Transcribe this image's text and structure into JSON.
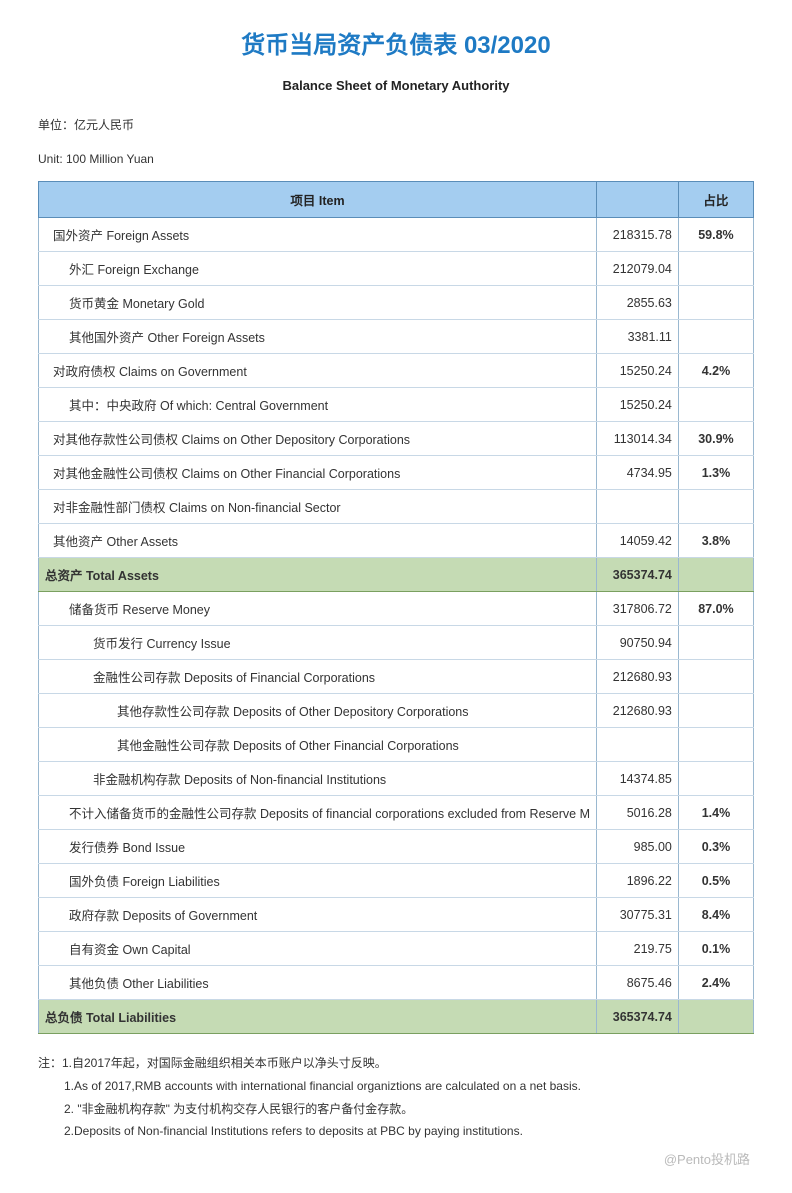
{
  "title": "货币当局资产负债表 03/2020",
  "subtitle": "Balance Sheet of  Monetary Authority",
  "unit_cn": "单位：亿元人民币",
  "unit_en": "Unit: 100 Million Yuan",
  "header": {
    "item": "项目  Item",
    "value": "",
    "pct": "占比"
  },
  "rows": [
    {
      "item": "国外资产   Foreign Assets",
      "val": "218315.78",
      "pct": "59.8%",
      "indent": 0,
      "major": true
    },
    {
      "item": "外汇  Foreign Exchange",
      "val": "212079.04",
      "pct": "",
      "indent": 1
    },
    {
      "item": "货币黄金  Monetary Gold",
      "val": "2855.63",
      "pct": "",
      "indent": 1
    },
    {
      "item": "其他国外资产  Other Foreign Assets",
      "val": "3381.11",
      "pct": "",
      "indent": 1
    },
    {
      "item": "对政府债权  Claims on Government",
      "val": "15250.24",
      "pct": "4.2%",
      "indent": 0,
      "major": true
    },
    {
      "item": "其中：中央政府  Of which: Central Government",
      "val": "15250.24",
      "pct": "",
      "indent": 1
    },
    {
      "item": "对其他存款性公司债权  Claims on Other Depository Corporations",
      "val": "113014.34",
      "pct": "30.9%",
      "indent": 0,
      "major": true
    },
    {
      "item": "对其他金融性公司债权  Claims on Other Financial Corporations",
      "val": "4734.95",
      "pct": "1.3%",
      "indent": 0,
      "major": true
    },
    {
      "item": "对非金融性部门债权  Claims on Non-financial Sector",
      "val": "",
      "pct": "",
      "indent": 0
    },
    {
      "item": "其他资产  Other Assets",
      "val": "14059.42",
      "pct": "3.8%",
      "indent": 0,
      "major": true
    },
    {
      "item": "总资产  Total Assets",
      "val": "365374.74",
      "pct": "",
      "indent": 0,
      "total": true
    },
    {
      "item": "储备货币  Reserve Money",
      "val": "317806.72",
      "pct": "87.0%",
      "indent": 1,
      "major": true
    },
    {
      "item": "货币发行  Currency Issue",
      "val": "90750.94",
      "pct": "",
      "indent": 2
    },
    {
      "item": "金融性公司存款  Deposits of  Financial Corporations",
      "val": "212680.93",
      "pct": "",
      "indent": 2
    },
    {
      "item": "其他存款性公司存款  Deposits of  Other Depository Corporations",
      "val": "212680.93",
      "pct": "",
      "indent": 3
    },
    {
      "item": "其他金融性公司存款  Deposits of  Other Financial Corporations",
      "val": "",
      "pct": "",
      "indent": 3
    },
    {
      "item": "非金融机构存款 Deposits of  Non-financial Institutions",
      "val": "14374.85",
      "pct": "",
      "indent": 2
    },
    {
      "item": "不计入储备货币的金融性公司存款  Deposits of financial corporations excluded from Reserve M",
      "val": "5016.28",
      "pct": "1.4%",
      "indent": 1,
      "major": true
    },
    {
      "item": "发行债券  Bond Issue",
      "val": "985.00",
      "pct": "0.3%",
      "indent": 1,
      "major": true
    },
    {
      "item": "国外负债  Foreign Liabilities",
      "val": "1896.22",
      "pct": "0.5%",
      "indent": 1,
      "major": true
    },
    {
      "item": "政府存款  Deposits of Government",
      "val": "30775.31",
      "pct": "8.4%",
      "indent": 1,
      "major": true
    },
    {
      "item": "自有资金  Own Capital",
      "val": "219.75",
      "pct": "0.1%",
      "indent": 1,
      "major": true
    },
    {
      "item": "其他负债  Other Liabilities",
      "val": "8675.46",
      "pct": "2.4%",
      "indent": 1,
      "major": true
    },
    {
      "item": "总负债  Total  Liabilities",
      "val": "365374.74",
      "pct": "",
      "indent": 0,
      "total": true
    }
  ],
  "notes": [
    "注：1.自2017年起，对国际金融组织相关本币账户以净头寸反映。",
    "1.As of 2017,RMB accounts with international financial organiztions are calculated on a net basis.",
    "2.  \"非金融机构存款\"  为支付机构交存人民银行的客户备付金存款。",
    "2.Deposits of Non-financial Institutions refers to deposits at PBC by paying institutions."
  ],
  "watermark": "@Pento投机路"
}
